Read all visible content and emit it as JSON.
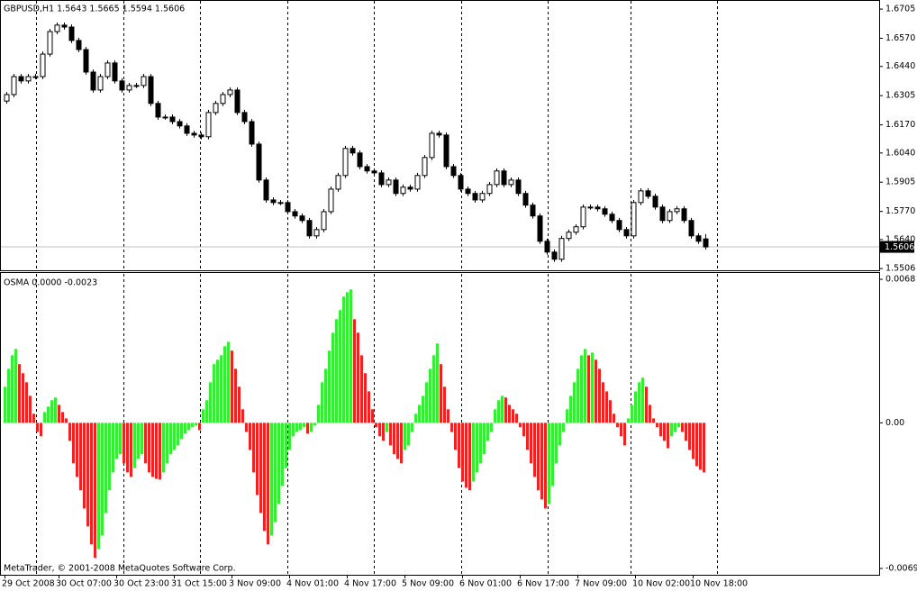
{
  "chart_data": [
    {
      "type": "candlestick",
      "title": "GBPUSD,H1  1.5643 1.5665 1.5594 1.5606",
      "up_color": "#ffffff",
      "down_color": "#000000",
      "line_color": "#000000",
      "last_price": 1.5606,
      "last_price_line_color": "#c0c0c0",
      "ylim": [
        1.5498,
        1.6747
      ],
      "yticks": [
        1.6705,
        {
          "value": 1.657,
          "label": "1.6570"
        },
        {
          "value": 1.644,
          "label": "1.6440"
        },
        1.6305,
        {
          "value": 1.617,
          "label": "1.6170"
        },
        {
          "value": 1.604,
          "label": "1.6040"
        },
        1.5905,
        {
          "value": 1.577,
          "label": "1.5770"
        },
        {
          "value": 1.564,
          "label": "1.5640"
        },
        1.5506
      ],
      "open": [
        1.628,
        1.631,
        1.6393,
        1.6373,
        1.6393,
        1.6393,
        1.6497,
        1.6601,
        1.6631,
        1.6622,
        1.656,
        1.6518,
        1.6414,
        1.6331,
        1.6393,
        1.6456,
        1.6373,
        1.6331,
        1.6352,
        1.6352,
        1.6393,
        1.6269,
        1.6206,
        1.6206,
        1.6185,
        1.6165,
        1.6131,
        1.6123,
        1.6115,
        1.6227,
        1.6269,
        1.631,
        1.6331,
        1.6227,
        1.6185,
        1.6081,
        1.5915,
        1.5823,
        1.5811,
        1.5811,
        1.5769,
        1.5749,
        1.5728,
        1.5657,
        1.5686,
        1.5769,
        1.5873,
        1.5936,
        1.6061,
        1.604,
        1.5977,
        1.5957,
        1.5948,
        1.5894,
        1.5915,
        1.5853,
        1.5882,
        1.5873,
        1.5936,
        1.6019,
        1.6131,
        1.6123,
        1.5977,
        1.5936,
        1.5873,
        1.5853,
        1.5823,
        1.5853,
        1.5894,
        1.5957,
        1.5894,
        1.5915,
        1.5853,
        1.5799,
        1.5749,
        1.5632,
        1.5582,
        1.5549,
        1.5645,
        1.5674,
        1.5699,
        1.579,
        1.579,
        1.5782,
        1.5757,
        1.5728,
        1.5686,
        1.5657,
        1.5811,
        1.5865,
        1.584,
        1.579,
        1.5728,
        1.5769,
        1.5782,
        1.5728,
        1.5657,
        1.5643
      ],
      "high": [
        1.6322,
        1.6405,
        1.6405,
        1.6405,
        1.6405,
        1.6509,
        1.6613,
        1.6643,
        1.6643,
        1.6634,
        1.6572,
        1.653,
        1.6426,
        1.6405,
        1.6468,
        1.6468,
        1.6385,
        1.6364,
        1.6364,
        1.6405,
        1.6405,
        1.6281,
        1.6218,
        1.6218,
        1.6197,
        1.6177,
        1.6143,
        1.6135,
        1.6239,
        1.6281,
        1.6322,
        1.6343,
        1.6343,
        1.6239,
        1.6197,
        1.6093,
        1.5927,
        1.5835,
        1.5823,
        1.5823,
        1.5781,
        1.5761,
        1.574,
        1.5698,
        1.5781,
        1.5885,
        1.5948,
        1.6073,
        1.6073,
        1.6052,
        1.5989,
        1.5969,
        1.596,
        1.5927,
        1.5927,
        1.5894,
        1.5894,
        1.5948,
        1.6031,
        1.6143,
        1.6143,
        1.6135,
        1.5989,
        1.5948,
        1.5885,
        1.5865,
        1.5865,
        1.5906,
        1.5969,
        1.5969,
        1.5927,
        1.5927,
        1.5865,
        1.5811,
        1.5761,
        1.5644,
        1.5594,
        1.5657,
        1.5686,
        1.5711,
        1.5802,
        1.5802,
        1.5802,
        1.5794,
        1.5769,
        1.574,
        1.5698,
        1.5823,
        1.5877,
        1.5877,
        1.5852,
        1.5802,
        1.5781,
        1.5794,
        1.5794,
        1.574,
        1.5669,
        1.5665
      ],
      "low": [
        1.6268,
        1.6298,
        1.6361,
        1.6361,
        1.6381,
        1.6381,
        1.6485,
        1.6589,
        1.661,
        1.6548,
        1.6506,
        1.6402,
        1.6319,
        1.6319,
        1.6381,
        1.6361,
        1.6319,
        1.6319,
        1.634,
        1.634,
        1.6257,
        1.6194,
        1.6194,
        1.6173,
        1.6153,
        1.6119,
        1.6111,
        1.6103,
        1.6103,
        1.6215,
        1.6257,
        1.6298,
        1.6215,
        1.6173,
        1.6069,
        1.5903,
        1.5811,
        1.5799,
        1.5799,
        1.5757,
        1.5737,
        1.5716,
        1.5645,
        1.5645,
        1.5674,
        1.5757,
        1.5861,
        1.5924,
        1.6028,
        1.5965,
        1.5945,
        1.5936,
        1.5882,
        1.5882,
        1.5841,
        1.5841,
        1.5861,
        1.5861,
        1.5924,
        1.6007,
        1.6111,
        1.5965,
        1.5924,
        1.5861,
        1.5841,
        1.5811,
        1.5811,
        1.5841,
        1.5882,
        1.5882,
        1.5882,
        1.5841,
        1.5787,
        1.5737,
        1.562,
        1.557,
        1.5537,
        1.5537,
        1.5633,
        1.5662,
        1.5687,
        1.5778,
        1.577,
        1.5745,
        1.5716,
        1.5674,
        1.5645,
        1.5645,
        1.5799,
        1.5828,
        1.5778,
        1.5716,
        1.5716,
        1.5757,
        1.5716,
        1.5645,
        1.562,
        1.5594
      ],
      "close": [
        1.631,
        1.6393,
        1.6373,
        1.6393,
        1.6393,
        1.6497,
        1.6601,
        1.6631,
        1.6622,
        1.656,
        1.6518,
        1.6414,
        1.6331,
        1.6393,
        1.6456,
        1.6373,
        1.6331,
        1.6352,
        1.6352,
        1.6393,
        1.6269,
        1.6206,
        1.6206,
        1.6185,
        1.6165,
        1.6131,
        1.6123,
        1.6115,
        1.6227,
        1.6269,
        1.631,
        1.6331,
        1.6227,
        1.6185,
        1.6081,
        1.5915,
        1.5823,
        1.5811,
        1.5811,
        1.5769,
        1.5749,
        1.5728,
        1.5657,
        1.5686,
        1.5769,
        1.5873,
        1.5936,
        1.6061,
        1.604,
        1.5977,
        1.5957,
        1.5948,
        1.5894,
        1.5915,
        1.5853,
        1.5882,
        1.5873,
        1.5936,
        1.6019,
        1.6131,
        1.6123,
        1.5977,
        1.5936,
        1.5873,
        1.5853,
        1.5823,
        1.5853,
        1.5894,
        1.5957,
        1.5894,
        1.5915,
        1.5853,
        1.5799,
        1.5749,
        1.5632,
        1.5582,
        1.5549,
        1.5645,
        1.5674,
        1.5699,
        1.579,
        1.579,
        1.5782,
        1.5757,
        1.5728,
        1.5686,
        1.5657,
        1.5811,
        1.5865,
        1.584,
        1.579,
        1.5728,
        1.5769,
        1.5782,
        1.5728,
        1.5657,
        1.5632,
        1.5606
      ]
    },
    {
      "type": "bar",
      "title": "OSMA 0.0000 -0.0023",
      "annotation": "MetaTrader, © 2001-2008 MetaQuotes Software Corp.",
      "up_color": "#33ee33",
      "down_color": "#ee2222",
      "ylim": [
        -0.0072,
        0.0071
      ],
      "yticks": [
        0.0068,
        {
          "value": 0,
          "label": "0.00"
        },
        -0.0069
      ],
      "categories": [
        "29 Oct 2008",
        null,
        null,
        null,
        null,
        null,
        null,
        null,
        null,
        null,
        null,
        null,
        null,
        null,
        null,
        "30 Oct 07:00",
        null,
        null,
        null,
        null,
        null,
        null,
        null,
        null,
        null,
        null,
        null,
        null,
        null,
        null,
        null,
        "30 Oct 23:00",
        null,
        null,
        null,
        null,
        null,
        null,
        null,
        null,
        null,
        null,
        null,
        null,
        null,
        null,
        null,
        "31 Oct 15:00",
        null,
        null,
        null,
        null,
        null,
        null,
        null,
        null,
        null,
        null,
        null,
        null,
        null,
        null,
        null,
        "3 Nov 09:00",
        null,
        null,
        null,
        null,
        null,
        null,
        null,
        null,
        null,
        null,
        null,
        null,
        null,
        null,
        null,
        "4 Nov 01:00",
        null,
        null,
        null,
        null,
        null,
        null,
        null,
        null,
        null,
        null,
        null,
        null,
        null,
        null,
        null,
        "4 Nov 17:00",
        null,
        null,
        null,
        null,
        null,
        null,
        null,
        null,
        null,
        null,
        null,
        null,
        null,
        null,
        null,
        "5 Nov 09:00",
        null,
        null,
        null,
        null,
        null,
        null,
        null,
        null,
        null,
        null,
        null,
        null,
        null,
        null,
        null,
        "6 Nov 01:00",
        null,
        null,
        null,
        null,
        null,
        null,
        null,
        null,
        null,
        null,
        null,
        null,
        null,
        null,
        null,
        "6 Nov 17:00",
        null,
        null,
        null,
        null,
        null,
        null,
        null,
        null,
        null,
        null,
        null,
        null,
        null,
        null,
        null,
        "7 Nov 09:00",
        null,
        null,
        null,
        null,
        null,
        null,
        null,
        null,
        null,
        null,
        null,
        null,
        null,
        null,
        null,
        "10 Nov 02:00",
        null,
        null,
        null,
        null,
        null,
        null,
        null,
        null,
        null,
        null,
        null,
        null,
        null,
        null,
        null,
        "10 Nov 18:00",
        null,
        null,
        null
      ],
      "values": [
        0.00171,
        0.00256,
        0.0032,
        0.0035,
        0.00278,
        0.00235,
        0.00192,
        0.00128,
        0.00043,
        -0.00043,
        -0.00064,
        0.00051,
        0.00077,
        0.00107,
        0.0012,
        0.00085,
        0.00051,
        0.00021,
        -0.00085,
        -0.00192,
        -0.00256,
        -0.0032,
        -0.00406,
        -0.00491,
        -0.00576,
        -0.0064,
        -0.00598,
        -0.00534,
        -0.00427,
        -0.0032,
        -0.00235,
        -0.00171,
        -0.00149,
        -0.00192,
        -0.00235,
        -0.00256,
        -0.00214,
        -0.00171,
        -0.00149,
        -0.00192,
        -0.00235,
        -0.00256,
        -0.00265,
        -0.00269,
        -0.00235,
        -0.00192,
        -0.00149,
        -0.00128,
        -0.00107,
        -0.00077,
        -0.00051,
        -0.00034,
        -0.00021,
        -0.00013,
        -0.00034,
        0.00064,
        0.00107,
        0.00192,
        0.00278,
        0.00299,
        0.0032,
        0.00363,
        0.00384,
        0.00342,
        0.00256,
        0.00171,
        0.00064,
        -0.00043,
        -0.00128,
        -0.00235,
        -0.00342,
        -0.00427,
        -0.00512,
        -0.00576,
        -0.00534,
        -0.0047,
        -0.00384,
        -0.00299,
        -0.00214,
        -0.00128,
        -0.00064,
        -0.00043,
        -0.00034,
        -0.00021,
        -0.00051,
        -0.00043,
        -0.00013,
        0.00085,
        0.00192,
        0.00256,
        0.00342,
        0.00427,
        0.00491,
        0.00534,
        0.00598,
        0.00619,
        0.00632,
        0.00491,
        0.00427,
        0.0032,
        0.00235,
        0.00149,
        0.00064,
        -0.00021,
        -0.00064,
        -0.00085,
        -0.00043,
        -0.00107,
        -0.00149,
        -0.00171,
        -0.00192,
        -0.00128,
        -0.00107,
        -0.00043,
        0.00043,
        0.00085,
        0.00128,
        0.00192,
        0.00256,
        0.0032,
        0.00376,
        0.00278,
        0.00171,
        0.00064,
        -0.00043,
        -0.00128,
        -0.00214,
        -0.00278,
        -0.00307,
        -0.0032,
        -0.00278,
        -0.00235,
        -0.00192,
        -0.00149,
        -0.00085,
        -0.00043,
        0.00064,
        0.00107,
        0.00128,
        0.0012,
        0.00085,
        0.00064,
        0.00043,
        -0.00021,
        -0.00064,
        -0.00128,
        -0.00192,
        -0.00256,
        -0.0032,
        -0.00363,
        -0.00406,
        -0.00384,
        -0.00299,
        -0.00192,
        -0.00107,
        -0.00043,
        0.00064,
        0.00128,
        0.00192,
        0.00256,
        0.0032,
        0.0035,
        0.0032,
        0.00333,
        0.00299,
        0.00256,
        0.00192,
        0.00149,
        0.00107,
        0.00043,
        -0.00021,
        -0.00064,
        -0.00107,
        0.00021,
        0.00085,
        0.00149,
        0.00192,
        0.00214,
        0.00171,
        0.00085,
        0.00021,
        -0.00021,
        -0.00064,
        -0.00085,
        -0.0012,
        -0.00064,
        -0.00043,
        -0.00021,
        -0.00043,
        -0.00085,
        -0.00128,
        -0.00171,
        -0.00205,
        -0.00222,
        -0.00235
      ]
    }
  ]
}
